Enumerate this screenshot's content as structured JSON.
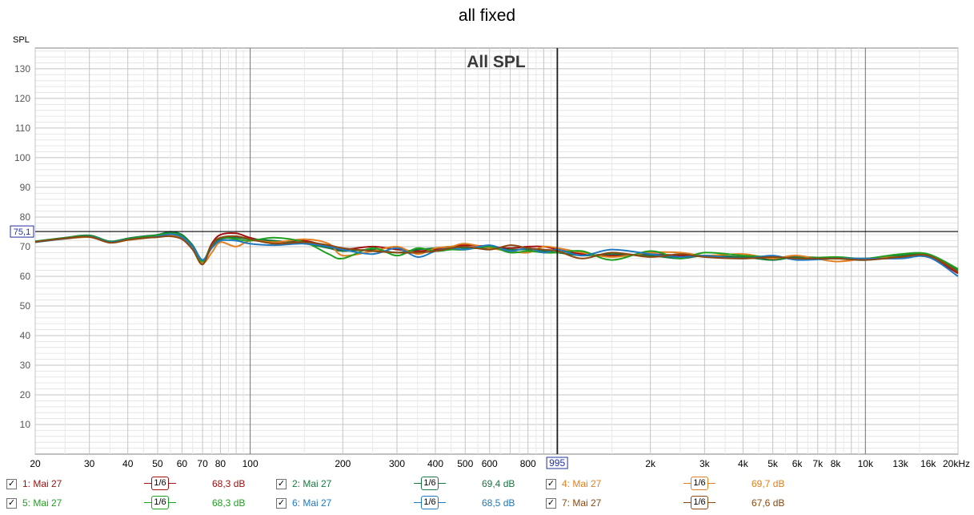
{
  "title": "all fixed",
  "chart_data": {
    "type": "line",
    "subtitle": "All SPL",
    "ylabel": "SPL",
    "xscale": "log",
    "xlim": [
      20,
      20000
    ],
    "ylim": [
      0,
      137
    ],
    "y_ticks": [
      10,
      20,
      30,
      40,
      50,
      60,
      70,
      80,
      90,
      100,
      110,
      120,
      130
    ],
    "x_tick_labels": [
      {
        "f": 20,
        "label": "20"
      },
      {
        "f": 30,
        "label": "30"
      },
      {
        "f": 40,
        "label": "40"
      },
      {
        "f": 50,
        "label": "50"
      },
      {
        "f": 60,
        "label": "60"
      },
      {
        "f": 70,
        "label": "70"
      },
      {
        "f": 80,
        "label": "80"
      },
      {
        "f": 100,
        "label": "100"
      },
      {
        "f": 200,
        "label": "200"
      },
      {
        "f": 300,
        "label": "300"
      },
      {
        "f": 400,
        "label": "400"
      },
      {
        "f": 500,
        "label": "500"
      },
      {
        "f": 600,
        "label": "600"
      },
      {
        "f": 800,
        "label": "800"
      },
      {
        "f": 2000,
        "label": "2k"
      },
      {
        "f": 3000,
        "label": "3k"
      },
      {
        "f": 4000,
        "label": "4k"
      },
      {
        "f": 5000,
        "label": "5k"
      },
      {
        "f": 6000,
        "label": "6k"
      },
      {
        "f": 7000,
        "label": "7k"
      },
      {
        "f": 8000,
        "label": "8k"
      },
      {
        "f": 10000,
        "label": "10k"
      },
      {
        "f": 13000,
        "label": "13k"
      },
      {
        "f": 16000,
        "label": "16k"
      },
      {
        "f": 20000,
        "label": "20kHz"
      }
    ],
    "cursor": {
      "x": 995,
      "x_label": "995",
      "y": 75.1,
      "y_label": "75,1"
    },
    "grid": true,
    "x": [
      20,
      25,
      30,
      35,
      40,
      45,
      50,
      55,
      60,
      65,
      70,
      75,
      80,
      90,
      100,
      120,
      150,
      180,
      200,
      250,
      300,
      350,
      400,
      450,
      500,
      600,
      700,
      800,
      900,
      1000,
      1200,
      1500,
      2000,
      2500,
      3000,
      4000,
      5000,
      6000,
      8000,
      10000,
      13000,
      16000,
      20000
    ],
    "series": [
      {
        "name": "1: Mai 27",
        "color": "#a01010",
        "smoothing": "1/6",
        "level": "68,3 dB",
        "values": [
          71.5,
          72.8,
          73.5,
          71.5,
          72.5,
          73.0,
          73.5,
          74.0,
          73.0,
          70.0,
          65.0,
          71.0,
          74.0,
          74.5,
          73.0,
          71.5,
          72.0,
          70.0,
          69.0,
          70.0,
          69.0,
          68.5,
          69.0,
          70.0,
          70.5,
          70.0,
          69.5,
          70.0,
          70.0,
          69.0,
          67.5,
          67.0,
          67.5,
          67.0,
          67.0,
          66.5,
          66.0,
          66.5,
          66.0,
          66.0,
          66.5,
          66.5,
          61.0
        ]
      },
      {
        "name": "2: Mai 27",
        "color": "#187840",
        "smoothing": "1/6",
        "level": "69,4 dB",
        "values": [
          71.8,
          73.0,
          73.8,
          71.8,
          72.8,
          73.5,
          74.0,
          75.0,
          74.0,
          70.5,
          65.5,
          70.0,
          72.5,
          73.0,
          72.5,
          72.0,
          71.0,
          69.5,
          68.5,
          69.0,
          68.0,
          69.0,
          69.5,
          70.0,
          69.5,
          69.5,
          69.0,
          69.0,
          68.5,
          68.0,
          67.0,
          67.5,
          67.0,
          66.0,
          67.0,
          66.5,
          65.5,
          66.5,
          66.0,
          65.5,
          67.0,
          67.0,
          62.0
        ]
      },
      {
        "name": "4: Mai 27",
        "color": "#e08020",
        "smoothing": "1/6",
        "level": "69,7 dB",
        "values": [
          71.6,
          72.6,
          73.2,
          71.4,
          72.2,
          72.8,
          73.3,
          73.8,
          72.8,
          69.5,
          64.5,
          68.0,
          71.5,
          70.0,
          72.0,
          71.5,
          72.5,
          71.0,
          67.0,
          68.5,
          70.0,
          67.5,
          69.5,
          70.0,
          71.0,
          69.5,
          68.5,
          68.0,
          70.0,
          69.5,
          68.0,
          66.5,
          68.0,
          68.0,
          67.0,
          67.5,
          66.0,
          67.0,
          65.0,
          66.0,
          66.5,
          67.0,
          61.5
        ]
      },
      {
        "name": "5: Mai 27",
        "color": "#20a020",
        "smoothing": "1/6",
        "level": "68,3 dB",
        "values": [
          71.7,
          72.9,
          73.6,
          71.6,
          72.6,
          73.2,
          73.8,
          74.5,
          73.5,
          70.0,
          65.0,
          70.5,
          73.0,
          72.5,
          72.0,
          73.0,
          71.5,
          67.5,
          66.0,
          69.5,
          67.0,
          69.5,
          68.5,
          69.0,
          69.0,
          70.0,
          68.0,
          68.5,
          68.0,
          68.0,
          68.5,
          65.5,
          68.5,
          66.0,
          68.0,
          67.0,
          66.5,
          66.0,
          66.5,
          66.0,
          67.5,
          67.5,
          62.5
        ]
      },
      {
        "name": "6: Mai 27",
        "color": "#1f78c0",
        "smoothing": "1/6",
        "level": "68,5 dB",
        "values": [
          71.5,
          72.7,
          73.4,
          71.5,
          72.4,
          72.9,
          73.4,
          74.2,
          73.2,
          70.0,
          65.5,
          69.5,
          72.0,
          72.0,
          71.0,
          70.5,
          71.0,
          70.0,
          69.0,
          67.5,
          69.5,
          66.5,
          68.5,
          69.5,
          69.0,
          70.5,
          68.5,
          69.5,
          68.0,
          69.0,
          67.0,
          69.0,
          67.5,
          66.5,
          67.0,
          66.0,
          67.0,
          65.5,
          66.0,
          66.0,
          66.0,
          66.5,
          60.0
        ]
      },
      {
        "name": "7: Mai 27",
        "color": "#8a4810",
        "smoothing": "1/6",
        "level": "67,6 dB",
        "values": [
          71.6,
          72.8,
          73.3,
          71.3,
          72.3,
          72.9,
          73.2,
          73.5,
          72.5,
          69.0,
          64.0,
          70.5,
          73.0,
          73.5,
          72.5,
          71.0,
          71.5,
          70.5,
          69.5,
          68.5,
          68.0,
          68.0,
          68.5,
          69.5,
          70.0,
          69.0,
          70.5,
          69.5,
          69.0,
          68.5,
          66.0,
          68.0,
          66.5,
          67.5,
          66.5,
          66.0,
          66.5,
          66.0,
          66.0,
          65.5,
          66.5,
          67.0,
          61.5
        ]
      }
    ]
  },
  "legend": [
    {
      "name": "1: Mai 27",
      "smoothing": "1/6",
      "level": "68,3 dB",
      "color": "#a01010",
      "checked": "✓"
    },
    {
      "name": "2: Mai 27",
      "smoothing": "1/6",
      "level": "69,4 dB",
      "color": "#187840",
      "checked": "✓"
    },
    {
      "name": "4: Mai 27",
      "smoothing": "1/6",
      "level": "69,7 dB",
      "color": "#e08020",
      "checked": "✓"
    },
    {
      "name": "5: Mai 27",
      "smoothing": "1/6",
      "level": "68,3 dB",
      "color": "#20a020",
      "checked": "✓"
    },
    {
      "name": "6: Mai 27",
      "smoothing": "1/6",
      "level": "68,5 dB",
      "color": "#1f78c0",
      "checked": "✓"
    },
    {
      "name": "7: Mai 27",
      "smoothing": "1/6",
      "level": "67,6 dB",
      "color": "#8a4810",
      "checked": "✓"
    }
  ]
}
